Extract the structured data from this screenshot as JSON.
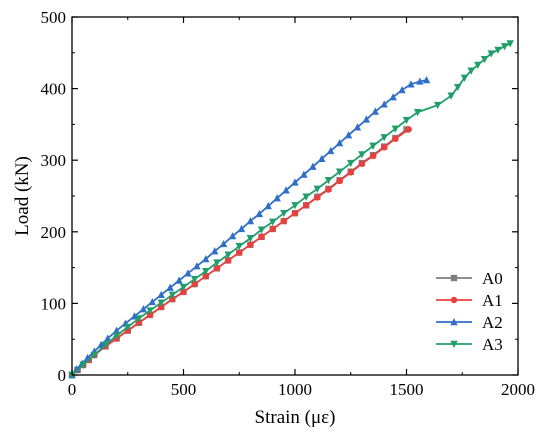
{
  "chart_data": {
    "type": "line",
    "xlabel": "Strain (με)",
    "ylabel": "Load (kN)",
    "xlim": [
      0,
      2000
    ],
    "ylim": [
      0,
      500
    ],
    "xticks": [
      0,
      500,
      1000,
      1500,
      2000
    ],
    "yticks": [
      0,
      100,
      200,
      300,
      400,
      500
    ],
    "grid": false,
    "legend": "bottom-right",
    "series": [
      {
        "name": "A0",
        "color": "#7f7f7f",
        "marker": "square",
        "x": [
          0,
          25,
          50,
          75,
          100,
          150,
          200,
          250,
          300,
          350,
          400,
          450,
          500,
          550,
          600,
          650,
          700,
          750,
          800,
          850,
          900,
          950,
          1000,
          1050,
          1100,
          1150,
          1200,
          1250,
          1300,
          1350,
          1400,
          1450,
          1500
        ],
        "y": [
          0,
          7,
          14,
          21,
          28,
          40,
          51,
          62,
          73,
          84,
          95,
          106,
          116,
          127,
          138,
          149,
          160,
          171,
          182,
          193,
          204,
          215,
          226,
          237,
          249,
          260,
          272,
          284,
          296,
          307,
          319,
          331,
          343
        ]
      },
      {
        "name": "A1",
        "color": "#e8403e",
        "marker": "circle",
        "x": [
          0,
          25,
          50,
          75,
          100,
          150,
          200,
          250,
          300,
          350,
          400,
          450,
          500,
          550,
          600,
          650,
          700,
          750,
          800,
          850,
          900,
          950,
          1000,
          1050,
          1100,
          1150,
          1200,
          1250,
          1300,
          1350,
          1400,
          1450,
          1510
        ],
        "y": [
          0,
          7,
          14,
          21,
          28,
          40,
          51,
          62,
          73,
          84,
          95,
          106,
          116,
          127,
          138,
          149,
          160,
          171,
          182,
          193,
          204,
          215,
          226,
          237,
          248,
          259,
          271,
          283,
          295,
          306,
          318,
          330,
          343
        ]
      },
      {
        "name": "A2",
        "color": "#2f6fc7",
        "marker": "triangle-up",
        "x": [
          0,
          20,
          45,
          70,
          100,
          130,
          160,
          200,
          240,
          280,
          320,
          360,
          400,
          440,
          480,
          520,
          560,
          600,
          640,
          680,
          720,
          760,
          800,
          840,
          880,
          920,
          960,
          1000,
          1040,
          1080,
          1120,
          1160,
          1200,
          1240,
          1280,
          1320,
          1360,
          1400,
          1440,
          1480,
          1520,
          1560,
          1590
        ],
        "y": [
          0,
          8,
          16,
          24,
          33,
          42,
          51,
          62,
          72,
          82,
          92,
          102,
          112,
          122,
          132,
          142,
          152,
          162,
          173,
          183,
          194,
          204,
          215,
          225,
          236,
          247,
          258,
          269,
          280,
          291,
          302,
          313,
          324,
          335,
          346,
          357,
          368,
          378,
          388,
          398,
          406,
          410,
          412
        ]
      },
      {
        "name": "A3",
        "color": "#1f9e6a",
        "marker": "triangle-down",
        "x": [
          0,
          50,
          100,
          150,
          200,
          250,
          300,
          350,
          400,
          450,
          500,
          550,
          600,
          650,
          700,
          750,
          800,
          850,
          900,
          950,
          1000,
          1050,
          1100,
          1150,
          1200,
          1250,
          1300,
          1350,
          1400,
          1450,
          1500,
          1550,
          1640,
          1700,
          1730,
          1760,
          1790,
          1820,
          1850,
          1880,
          1910,
          1940,
          1965
        ],
        "y": [
          0,
          14,
          28,
          42,
          55,
          67,
          79,
          90,
          101,
          112,
          123,
          134,
          145,
          157,
          168,
          180,
          191,
          203,
          214,
          226,
          237,
          249,
          260,
          272,
          284,
          296,
          308,
          320,
          332,
          344,
          356,
          367,
          377,
          390,
          402,
          415,
          425,
          433,
          441,
          449,
          454,
          459,
          463
        ]
      }
    ]
  }
}
